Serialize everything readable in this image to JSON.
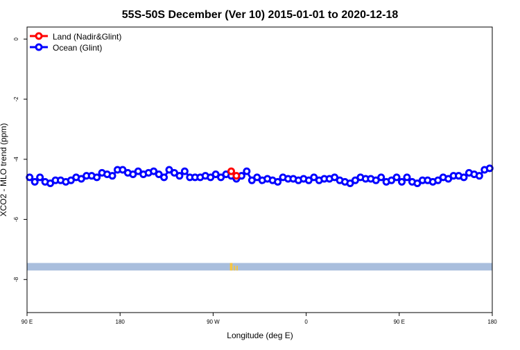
{
  "chart_data": {
    "type": "line",
    "title": "55S-50S December (Ver 10)   2015-01-01 to 2020-12-18",
    "xlabel": "Longitude (deg E)",
    "ylabel": "XCO2 - MLO trend (ppm)",
    "xlim": [
      90,
      450
    ],
    "ylim": [
      -9.1,
      0.4
    ],
    "x_ticks": [
      {
        "value": 90,
        "label": "90 E"
      },
      {
        "value": 162,
        "label": "180"
      },
      {
        "value": 234,
        "label": "90 W"
      },
      {
        "value": 306,
        "label": "0"
      },
      {
        "value": 378,
        "label": "90 E"
      },
      {
        "value": 450,
        "label": "180"
      }
    ],
    "y_ticks": [
      {
        "value": 0,
        "label": "0"
      },
      {
        "value": -2,
        "label": "-2"
      },
      {
        "value": -4,
        "label": "-4"
      },
      {
        "value": -6,
        "label": "-6"
      },
      {
        "value": -8,
        "label": "-8"
      }
    ],
    "grid": false,
    "legend_position": "top-left",
    "land_band": {
      "y_range": [
        -7.7,
        -7.45
      ],
      "color": "#a9bedd",
      "highlight_color": "#f5c542",
      "highlights": [
        [
          247,
          249
        ],
        [
          250,
          251
        ],
        [
          252,
          253
        ]
      ]
    },
    "series": [
      {
        "name": "Land (Nadir&Glint)",
        "color": "#ff0000",
        "x": [
          248,
          252
        ],
        "y": [
          -4.4,
          -4.55
        ]
      },
      {
        "name": "Ocean (Glint)",
        "color": "#0000ff",
        "x": [
          92,
          96,
          100,
          104,
          108,
          112,
          116,
          120,
          124,
          128,
          132,
          136,
          140,
          144,
          148,
          152,
          156,
          160,
          164,
          168,
          172,
          176,
          180,
          184,
          188,
          192,
          196,
          200,
          204,
          208,
          212,
          216,
          220,
          224,
          228,
          232,
          236,
          240,
          244,
          248,
          252,
          256,
          260,
          264,
          268,
          272,
          276,
          280,
          284,
          288,
          292,
          296,
          300,
          304,
          308,
          312,
          316,
          320,
          324,
          328,
          332,
          336,
          340,
          344,
          348,
          352,
          356,
          360,
          364,
          368,
          372,
          376,
          380,
          384,
          388,
          392,
          396,
          400,
          404,
          408,
          412,
          416,
          420,
          424,
          428,
          432,
          436,
          440,
          444,
          448
        ],
        "y": [
          -4.6,
          -4.75,
          -4.6,
          -4.75,
          -4.8,
          -4.7,
          -4.7,
          -4.75,
          -4.7,
          -4.6,
          -4.65,
          -4.55,
          -4.55,
          -4.6,
          -4.45,
          -4.5,
          -4.55,
          -4.35,
          -4.35,
          -4.45,
          -4.5,
          -4.4,
          -4.5,
          -4.45,
          -4.4,
          -4.5,
          -4.6,
          -4.35,
          -4.45,
          -4.55,
          -4.4,
          -4.6,
          -4.6,
          -4.6,
          -4.55,
          -4.6,
          -4.5,
          -4.6,
          -4.5,
          -4.55,
          -4.65,
          -4.55,
          -4.4,
          -4.7,
          -4.6,
          -4.7,
          -4.65,
          -4.7,
          -4.75,
          -4.6,
          -4.65,
          -4.65,
          -4.7,
          -4.65,
          -4.7,
          -4.6,
          -4.7,
          -4.65,
          -4.65,
          -4.6,
          -4.7,
          -4.75,
          -4.8,
          -4.7,
          -4.6,
          -4.65,
          -4.65,
          -4.7,
          -4.6,
          -4.75,
          -4.7,
          -4.6,
          -4.75,
          -4.6,
          -4.75,
          -4.8,
          -4.7,
          -4.7,
          -4.75,
          -4.7,
          -4.6,
          -4.65,
          -4.55,
          -4.55,
          -4.6,
          -4.45,
          -4.5,
          -4.55,
          -4.35,
          -4.3
        ]
      }
    ]
  }
}
